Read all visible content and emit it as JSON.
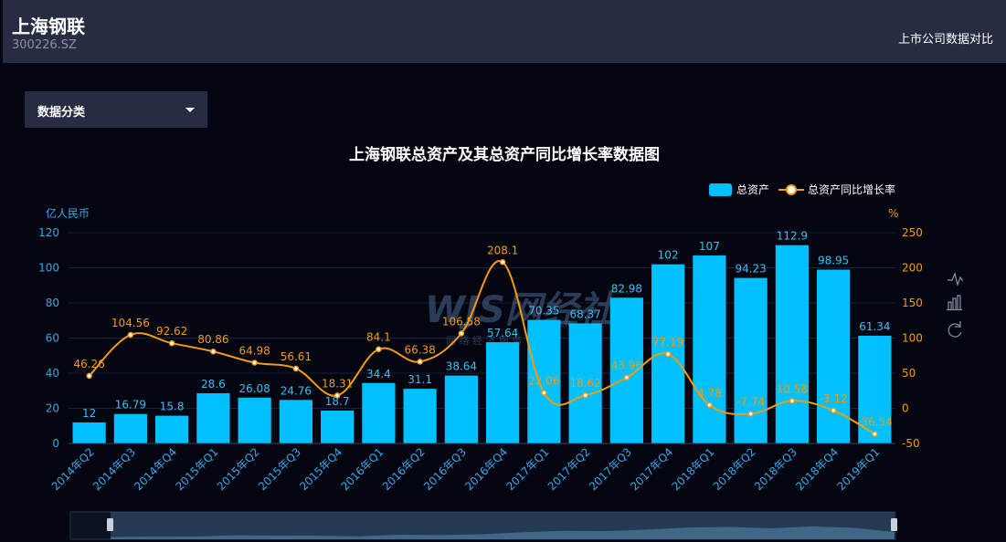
{
  "header": {
    "company_name": "上海钢联",
    "stock_code": "300226.SZ",
    "compare_link": "上市公司数据对比"
  },
  "controls": {
    "category_label": "数据分类"
  },
  "toolbox": {
    "icons": [
      "line-chart-icon",
      "bar-chart-icon",
      "restore-icon"
    ]
  },
  "watermark": {
    "logo": "WJS网经社",
    "url": "100EC.CN",
    "tagline": "网 络 经 济 服 务 平 台"
  },
  "colors": {
    "bar": "#00c0ff",
    "line": "#f39c12",
    "left_axis_text": "#37a8e8",
    "right_axis_text": "#f39c12",
    "background": "#030511",
    "header": "#262d42"
  },
  "chart_data": {
    "type": "bar",
    "title": "上海钢联总资产及其总资产同比增长率数据图",
    "categories": [
      "2014年Q2",
      "2014年Q3",
      "2014年Q4",
      "2015年Q1",
      "2015年Q2",
      "2015年Q3",
      "2015年Q4",
      "2016年Q1",
      "2016年Q2",
      "2016年Q3",
      "2016年Q4",
      "2017年Q1",
      "2017年Q2",
      "2017年Q3",
      "2017年Q4",
      "2018年Q1",
      "2018年Q2",
      "2018年Q3",
      "2018年Q4",
      "2019年Q1"
    ],
    "series": [
      {
        "name": "总资产",
        "type": "bar",
        "axis": "left",
        "values": [
          12,
          16.79,
          15.8,
          28.6,
          26.08,
          24.76,
          18.7,
          34.4,
          31.1,
          38.64,
          57.64,
          70.35,
          68.37,
          82.98,
          102,
          107,
          94.23,
          112.9,
          98.95,
          61.34
        ]
      },
      {
        "name": "总资产同比增长率",
        "type": "line",
        "axis": "right",
        "values": [
          46.26,
          104.56,
          92.62,
          80.86,
          64.98,
          56.61,
          18.31,
          84.1,
          66.38,
          106.58,
          208.1,
          22.06,
          18.62,
          43.96,
          77.19,
          4.78,
          -7.74,
          10.58,
          -3.12,
          -36.54
        ]
      }
    ],
    "y_left": {
      "label": "亿人民币",
      "min": 0,
      "max": 120,
      "ticks": [
        0,
        20,
        40,
        60,
        80,
        100,
        120
      ]
    },
    "y_right": {
      "label": "%",
      "min": -50,
      "max": 250,
      "ticks": [
        -50,
        0,
        50,
        100,
        150,
        200,
        250
      ]
    },
    "legend_position": "top-right",
    "grid": true
  }
}
